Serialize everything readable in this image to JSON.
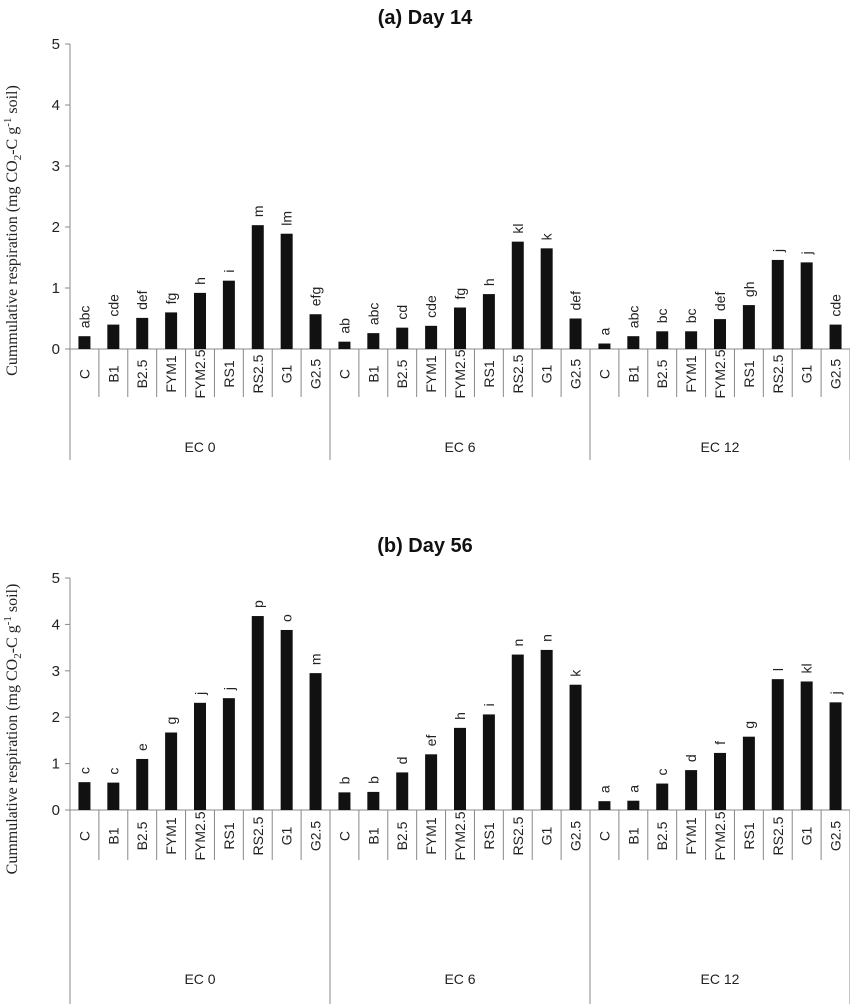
{
  "chart_data": [
    {
      "type": "bar",
      "title": "(a) Day 14",
      "ylabel": {
        "prefix": "Cummulative respiration (mg  CO",
        "sub": "2",
        "mid": "-C g",
        "sup": "-1",
        "suffix": " soil)"
      },
      "ylim": [
        0,
        5
      ],
      "yticks": [
        "0",
        "1",
        "2",
        "3",
        "4",
        "5"
      ],
      "groups": [
        {
          "label": "EC 0",
          "categories": [
            "C",
            "B1",
            "B2.5",
            "FYM1",
            "FYM2.5",
            "RS1",
            "RS2.5",
            "G1",
            "G2.5"
          ],
          "values": [
            0.21,
            0.4,
            0.51,
            0.6,
            0.92,
            1.12,
            2.03,
            1.89,
            0.57
          ],
          "letters": [
            "abc",
            "cde",
            "def",
            "fg",
            "h",
            "i",
            "m",
            "lm",
            "efg"
          ]
        },
        {
          "label": "EC 6",
          "categories": [
            "C",
            "B1",
            "B2.5",
            "FYM1",
            "FYM2.5",
            "RS1",
            "RS2.5",
            "G1",
            "G2.5"
          ],
          "values": [
            0.12,
            0.26,
            0.35,
            0.38,
            0.68,
            0.9,
            1.76,
            1.65,
            0.5
          ],
          "letters": [
            "ab",
            "abc",
            "cd",
            "cde",
            "fg",
            "h",
            "kl",
            "k",
            "def"
          ]
        },
        {
          "label": "EC 12",
          "categories": [
            "C",
            "B1",
            "B2.5",
            "FYM1",
            "FYM2.5",
            "RS1",
            "RS2.5",
            "G1",
            "G2.5"
          ],
          "values": [
            0.09,
            0.21,
            0.29,
            0.29,
            0.49,
            0.72,
            1.46,
            1.42,
            0.4
          ],
          "letters": [
            "a",
            "abc",
            "bc",
            "bc",
            "def",
            "gh",
            "j",
            "j",
            "cde"
          ]
        }
      ]
    },
    {
      "type": "bar",
      "title": "(b) Day 56",
      "ylabel": {
        "prefix": "Cummulative respiration (mg  CO",
        "sub": "2",
        "mid": "-C g",
        "sup": "-1",
        "suffix": " soil)"
      },
      "ylim": [
        0,
        5
      ],
      "yticks": [
        "0",
        "1",
        "2",
        "3",
        "4",
        "5"
      ],
      "groups": [
        {
          "label": "EC 0",
          "categories": [
            "C",
            "B1",
            "B2.5",
            "FYM1",
            "FYM2.5",
            "RS1",
            "RS2.5",
            "G1",
            "G2.5"
          ],
          "values": [
            0.6,
            0.59,
            1.1,
            1.67,
            2.31,
            2.41,
            4.18,
            3.88,
            2.95
          ],
          "letters": [
            "c",
            "c",
            "e",
            "g",
            "j",
            "j",
            "p",
            "o",
            "m"
          ]
        },
        {
          "label": "EC 6",
          "categories": [
            "C",
            "B1",
            "B2.5",
            "FYM1",
            "FYM2.5",
            "RS1",
            "RS2.5",
            "G1",
            "G2.5"
          ],
          "values": [
            0.38,
            0.39,
            0.81,
            1.2,
            1.77,
            2.06,
            3.35,
            3.45,
            2.7
          ],
          "letters": [
            "b",
            "b",
            "d",
            "ef",
            "h",
            "i",
            "n",
            "n",
            "k"
          ]
        },
        {
          "label": "EC 12",
          "categories": [
            "C",
            "B1",
            "B2.5",
            "FYM1",
            "FYM2.5",
            "RS1",
            "RS2.5",
            "G1",
            "G2.5"
          ],
          "values": [
            0.19,
            0.2,
            0.57,
            0.86,
            1.23,
            1.58,
            2.82,
            2.77,
            2.32
          ],
          "letters": [
            "a",
            "a",
            "c",
            "d",
            "f",
            "g",
            "l",
            "kl",
            "j"
          ]
        }
      ]
    }
  ]
}
